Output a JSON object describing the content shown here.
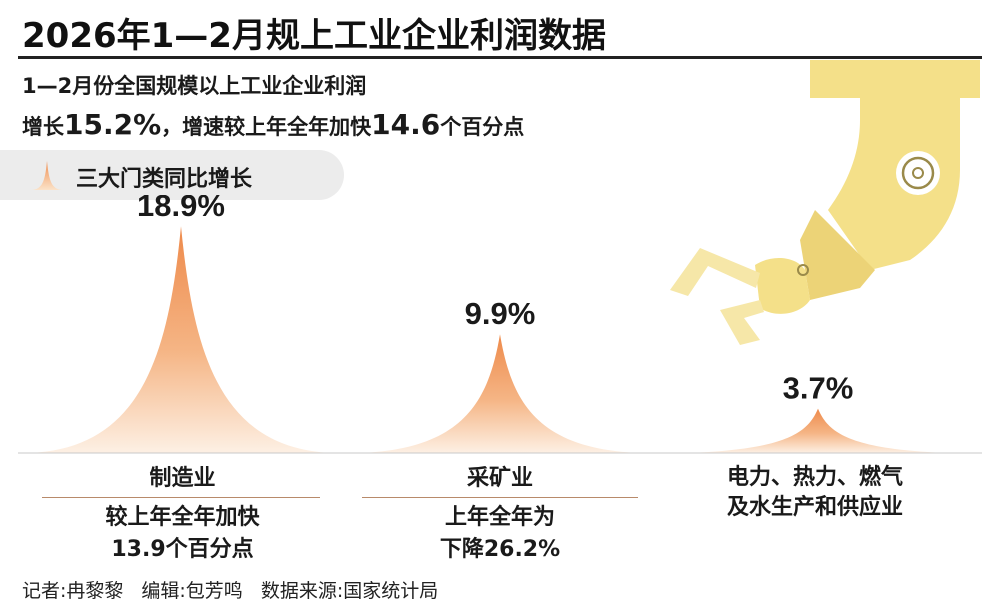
{
  "title": "2026年1—2月规上工业企业利润数据",
  "subtitle_line1": "1—2月份全国规模以上工业企业利润",
  "subtitle_line2": {
    "prefix": "增长",
    "growth": "15.2%",
    "middle": "，增速较上年全年加快",
    "acceleration": "14.6",
    "suffix": "个百分点"
  },
  "legend_label": "三大门类同比增长",
  "chart_data": {
    "type": "area",
    "categories": [
      "制造业",
      "采矿业",
      "电力、热力、燃气及水生产和供应业"
    ],
    "values": [
      18.9,
      9.9,
      3.7
    ],
    "value_labels": [
      "18.9%",
      "9.9%",
      "3.7%"
    ],
    "category_lines": [
      [
        "制造业"
      ],
      [
        "采矿业"
      ],
      [
        "电力、热力、燃气",
        "及水生产和供应业"
      ]
    ],
    "notes": [
      [
        "较上年全年加快",
        "13.9个百分点"
      ],
      [
        "上年全年为",
        "下降26.2%"
      ],
      []
    ],
    "ylim": [
      0,
      20
    ]
  },
  "credits": {
    "reporter": "记者:冉黎黎",
    "editor": "编辑:包芳鸣",
    "source": "数据来源:国家统计局"
  },
  "colors": {
    "peak_top": "#ef8d4f",
    "peak_bottom": "#fbe6d2",
    "robot_arm": "#f4e089",
    "robot_arm_dark": "#e8cf6a",
    "robot_claw": "#f6e7a8"
  },
  "icons": {
    "legend": "peak-icon",
    "illustration": "robot-arm-icon"
  }
}
